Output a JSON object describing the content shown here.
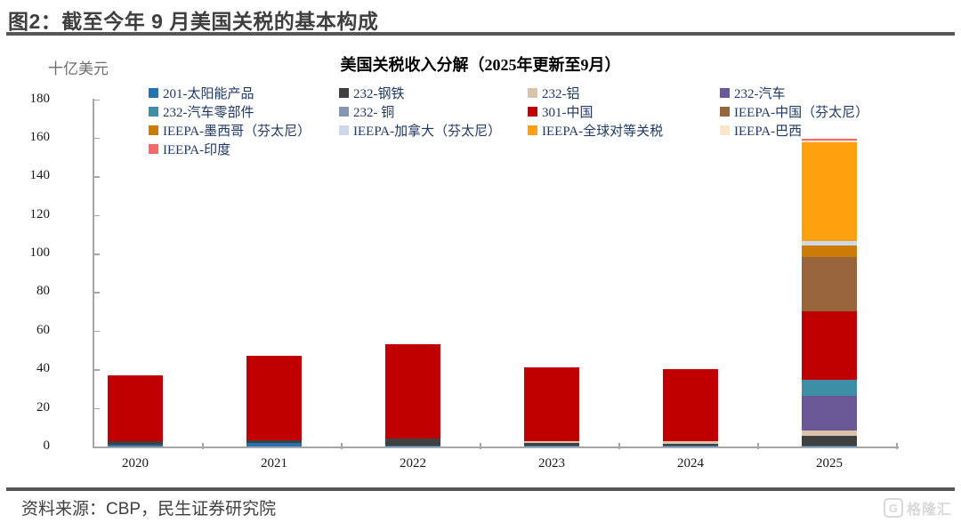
{
  "header": {
    "title": "图2：截至今年 9 月美国关税的基本构成"
  },
  "footer": {
    "source": "资料来源：CBP，民生证券研究院",
    "watermark": "格隆汇",
    "watermark_icon": "G"
  },
  "chart_data": {
    "type": "bar",
    "stacked": true,
    "title": "美国关税收入分解（2025年更新至9月）",
    "unit_label": "十亿美元",
    "xlabel": "",
    "ylabel": "十亿美元",
    "categories": [
      "2020",
      "2021",
      "2022",
      "2023",
      "2024",
      "2025"
    ],
    "ylim": [
      0,
      180
    ],
    "ytick_step": 20,
    "grid": false,
    "legend_position": "top",
    "axis_color": "#a6a6a6",
    "series": [
      {
        "name": "201-太阳能产品",
        "color": "#2473b5",
        "values": [
          1.0,
          1.8,
          0.4,
          0.3,
          0.3,
          0.3
        ]
      },
      {
        "name": "232-钢铁",
        "color": "#404040",
        "values": [
          2.0,
          1.5,
          3.6,
          1.7,
          1.2,
          5.2
        ]
      },
      {
        "name": "232-铝",
        "color": "#d9c4a9",
        "values": [
          0,
          0,
          0,
          0.8,
          1.2,
          3.0
        ]
      },
      {
        "name": "232-汽车",
        "color": "#6a5796",
        "values": [
          0,
          0,
          0,
          0,
          0,
          18.0
        ]
      },
      {
        "name": "232-汽车零部件",
        "color": "#3e8ea5",
        "values": [
          0,
          0,
          0,
          0,
          0,
          8.0
        ]
      },
      {
        "name": "232- 铜",
        "color": "#8496b0",
        "values": [
          0,
          0,
          0,
          0,
          0,
          0.2
        ]
      },
      {
        "name": "301-中国",
        "color": "#c00000",
        "values": [
          34.0,
          43.5,
          49.0,
          38.2,
          37.3,
          35.5
        ]
      },
      {
        "name": "IEEPA-中国（芬太尼）",
        "color": "#97643c",
        "values": [
          0,
          0,
          0,
          0,
          0,
          28.0
        ]
      },
      {
        "name": "IEEPA-墨西哥（芬太尼）",
        "color": "#cc7c04",
        "values": [
          0,
          0,
          0,
          0,
          0,
          6.0
        ]
      },
      {
        "name": "IEEPA-加拿大（芬太尼）",
        "color": "#cdd8ea",
        "values": [
          0,
          0,
          0,
          0,
          0,
          2.2
        ]
      },
      {
        "name": "IEEPA-全球对等关税",
        "color": "#ffa00e",
        "values": [
          0,
          0,
          0,
          0,
          0,
          51.5
        ]
      },
      {
        "name": "IEEPA-巴西",
        "color": "#fbe5c9",
        "values": [
          0,
          0,
          0,
          0,
          0,
          0.5
        ]
      },
      {
        "name": "IEEPA-印度",
        "color": "#f4696b",
        "values": [
          0,
          0,
          0,
          0,
          0,
          1.2
        ]
      }
    ]
  }
}
